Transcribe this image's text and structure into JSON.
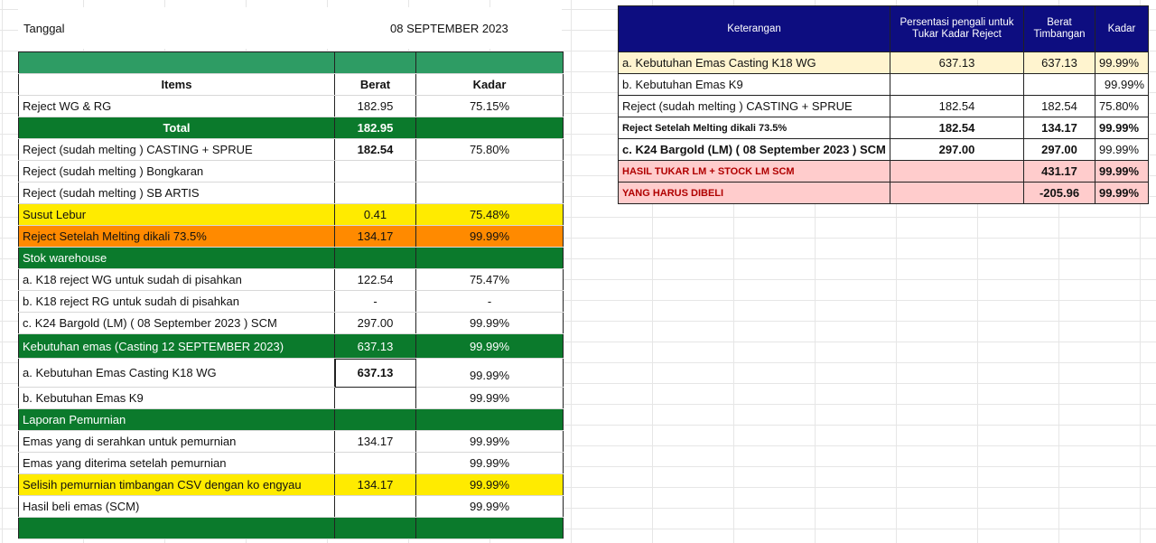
{
  "date_row": {
    "label": "Tanggal",
    "value": "08 SEPTEMBER 2023"
  },
  "left_table": {
    "headers": {
      "items": "Items",
      "berat": "Berat",
      "kadar": "Kadar"
    },
    "rows": [
      {
        "item": "Reject WG & RG",
        "berat": "182.95",
        "kadar": "75.15%"
      },
      {
        "item": "Total",
        "berat": "182.95",
        "kadar": ""
      },
      {
        "item": "Reject  (sudah melting ) CASTING + SPRUE",
        "berat": "182.54",
        "kadar": "75.80%"
      },
      {
        "item": "Reject  (sudah melting ) Bongkaran",
        "berat": "",
        "kadar": ""
      },
      {
        "item": "Reject  (sudah melting ) SB ARTIS",
        "berat": "",
        "kadar": ""
      },
      {
        "item": "Susut Lebur",
        "berat": "0.41",
        "kadar": "75.48%"
      },
      {
        "item": "Reject Setelah Melting dikali 73.5%",
        "berat": "134.17",
        "kadar": "99.99%"
      },
      {
        "item": "Stok warehouse",
        "berat": "",
        "kadar": ""
      },
      {
        "item": "a. K18 reject WG untuk  sudah di pisahkan",
        "berat": "122.54",
        "kadar": "75.47%"
      },
      {
        "item": "b. K18 reject RG untuk  sudah di pisahkan",
        "berat": "-",
        "kadar": "-"
      },
      {
        "item": "c. K24 Bargold (LM) ( 08 September 2023 ) SCM",
        "berat": "297.00",
        "kadar": "99.99%"
      },
      {
        "item": "Kebutuhan emas (Casting 12 SEPTEMBER 2023)",
        "berat": "637.13",
        "kadar": "99.99%"
      },
      {
        "item": "a. Kebutuhan Emas Casting K18 WG",
        "berat": "637.13",
        "kadar": "99.99%"
      },
      {
        "item": "b. Kebutuhan Emas K9",
        "berat": "",
        "kadar": "99.99%"
      },
      {
        "item": "Laporan Pemurnian",
        "berat": "",
        "kadar": ""
      },
      {
        "item": "Emas yang di serahkan untuk pemurnian",
        "berat": "134.17",
        "kadar": "99.99%"
      },
      {
        "item": "Emas yang diterima setelah pemurnian",
        "berat": "",
        "kadar": "99.99%"
      },
      {
        "item": "Selisih pemurnian timbangan CSV dengan ko engyau",
        "berat": "134.17",
        "kadar": "99.99%"
      },
      {
        "item": " Hasil beli emas (SCM)",
        "berat": "",
        "kadar": "99.99%"
      }
    ]
  },
  "right_table": {
    "headers": {
      "keterangan": "Keterangan",
      "persentasi": "Persentasi pengali untuk Tukar Kadar Reject",
      "berat": "Berat Timbangan",
      "kadar": "Kadar"
    },
    "rows": [
      {
        "ket": "a. Kebutuhan Emas Casting K18 WG",
        "persen": "637.13",
        "berat": "637.13",
        "kadar": "99.99%"
      },
      {
        "ket": "b. Kebutuhan Emas K9",
        "persen": "",
        "berat": "",
        "kadar": "99.99%"
      },
      {
        "ket": "Reject  (sudah melting ) CASTING + SPRUE",
        "persen": "182.54",
        "berat": "182.54",
        "kadar": "75.80%"
      },
      {
        "ket": "Reject Setelah Melting dikali 73.5%",
        "persen": "182.54",
        "berat": "134.17",
        "kadar": "99.99%"
      },
      {
        "ket": "c. K24 Bargold (LM) ( 08 September 2023 ) SCM",
        "persen": "297.00",
        "berat": "297.00",
        "kadar": "99.99%"
      },
      {
        "ket": "HASIL TUKAR LM + STOCK LM SCM",
        "persen": "",
        "berat": "431.17",
        "kadar": "99.99%"
      },
      {
        "ket": "YANG HARUS DIBELI",
        "persen": "",
        "berat": "-205.96",
        "kadar": "99.99%"
      }
    ]
  },
  "colors": {
    "green": "#0b7a2c",
    "light_green": "#2e9c64",
    "yellow": "#ffeb00",
    "orange": "#ff8a00",
    "navy": "#0d0d80",
    "cream": "#fff4cf",
    "pink": "#ffcccc"
  }
}
